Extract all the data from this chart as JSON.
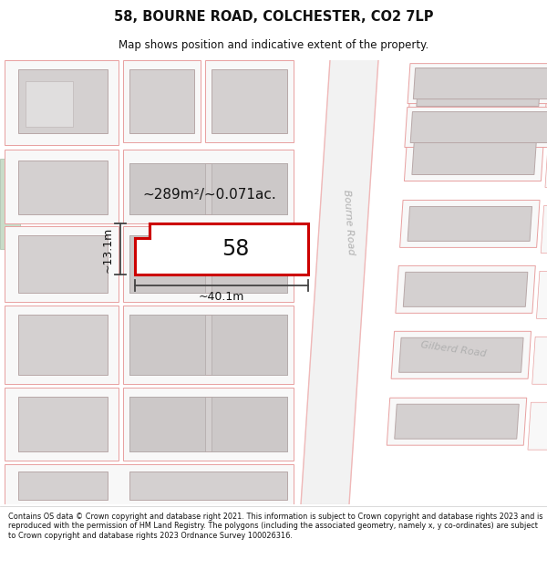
{
  "title": "58, BOURNE ROAD, COLCHESTER, CO2 7LP",
  "subtitle": "Map shows position and indicative extent of the property.",
  "footer": "Contains OS data © Crown copyright and database right 2021. This information is subject to Crown copyright and database rights 2023 and is reproduced with the permission of HM Land Registry. The polygons (including the associated geometry, namely x, y co-ordinates) are subject to Crown copyright and database rights 2023 Ordnance Survey 100026316.",
  "bg_color": "#ffffff",
  "road_color_light": "#f0b8b8",
  "road_fill": "#f5f5f5",
  "highlight_color": "#cc0000",
  "highlight_fill": "#ffffff",
  "building_fill": "#d4d0d0",
  "building_edge": "#b8a8a8",
  "plot_fill": "#f8f8f8",
  "plot_edge": "#e8a0a0",
  "green_fill": "#c8dcc8",
  "green_edge": "#a8bca8",
  "road_label_color": "#b0b0b0",
  "annotation_color": "#111111",
  "area_label": "~289m²/~0.071ac.",
  "width_label": "~40.1m",
  "height_label": "~13.1m",
  "number_label": "58",
  "bourne_road_label": "Bourne Road",
  "gilberd_road_label": "Gilberd Road"
}
